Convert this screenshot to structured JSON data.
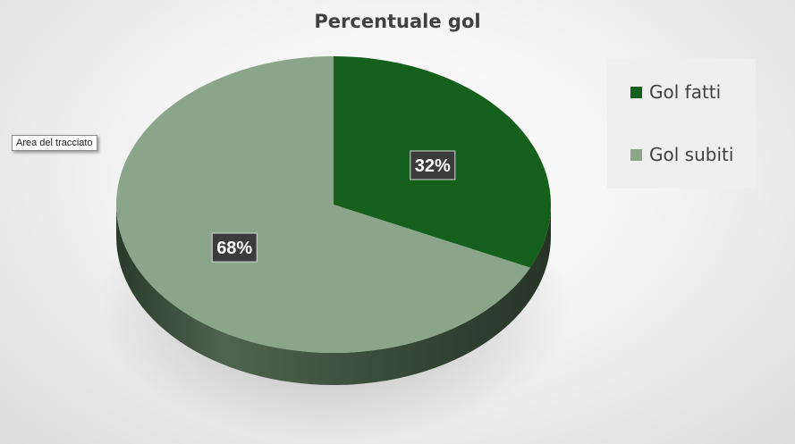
{
  "chart_data": {
    "type": "pie",
    "title": "Percentuale gol",
    "categories": [
      "Gol fatti",
      "Gol subiti"
    ],
    "values": [
      32,
      68
    ],
    "data_labels": [
      "32%",
      "68%"
    ],
    "colors": [
      "#16601e",
      "#8aa58a"
    ],
    "style": "3d",
    "legend_position": "right"
  },
  "tooltip": {
    "text": "Area del tracciato"
  }
}
